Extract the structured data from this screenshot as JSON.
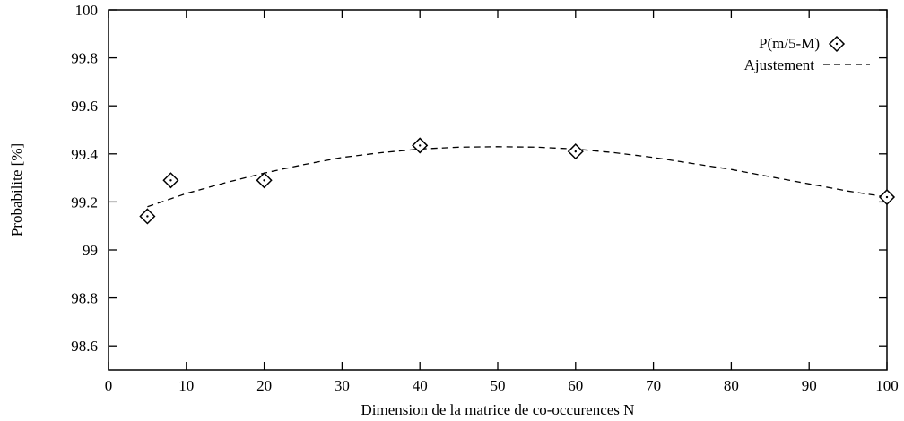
{
  "chart_data": {
    "type": "scatter",
    "title": "",
    "xlabel": "Dimension de la matrice de co-occurences N",
    "ylabel": "Probabilite [%]",
    "xlim": [
      0,
      100
    ],
    "ylim": [
      98.5,
      100
    ],
    "x_ticks": [
      0,
      10,
      20,
      30,
      40,
      50,
      60,
      70,
      80,
      90,
      100
    ],
    "y_ticks": [
      98.6,
      98.8,
      99,
      99.2,
      99.4,
      99.6,
      99.8,
      100
    ],
    "x_tick_labels": [
      "0",
      "10",
      "20",
      "30",
      "40",
      "50",
      "60",
      "70",
      "80",
      "90",
      "100"
    ],
    "y_tick_labels": [
      "98.6",
      "98.8",
      "99",
      "99.2",
      "99.4",
      "99.6",
      "99.8",
      "100"
    ],
    "grid": false,
    "legend_position": "top-right",
    "series": [
      {
        "name": "P(m/5-M)",
        "kind": "scatter",
        "marker": "diamond",
        "x": [
          5,
          8,
          20,
          40,
          60,
          100
        ],
        "y": [
          99.14,
          99.29,
          99.29,
          99.435,
          99.41,
          99.22
        ]
      },
      {
        "name": "Ajustement",
        "kind": "line",
        "style": "dashed",
        "x": [
          5,
          10,
          15,
          20,
          25,
          30,
          35,
          40,
          45,
          50,
          55,
          60,
          65,
          70,
          75,
          80,
          85,
          90,
          95,
          100
        ],
        "y": [
          99.18,
          99.235,
          99.28,
          99.32,
          99.355,
          99.385,
          99.405,
          99.42,
          99.428,
          99.43,
          99.428,
          99.42,
          99.405,
          99.385,
          99.36,
          99.335,
          99.305,
          99.275,
          99.245,
          99.22
        ]
      }
    ]
  }
}
